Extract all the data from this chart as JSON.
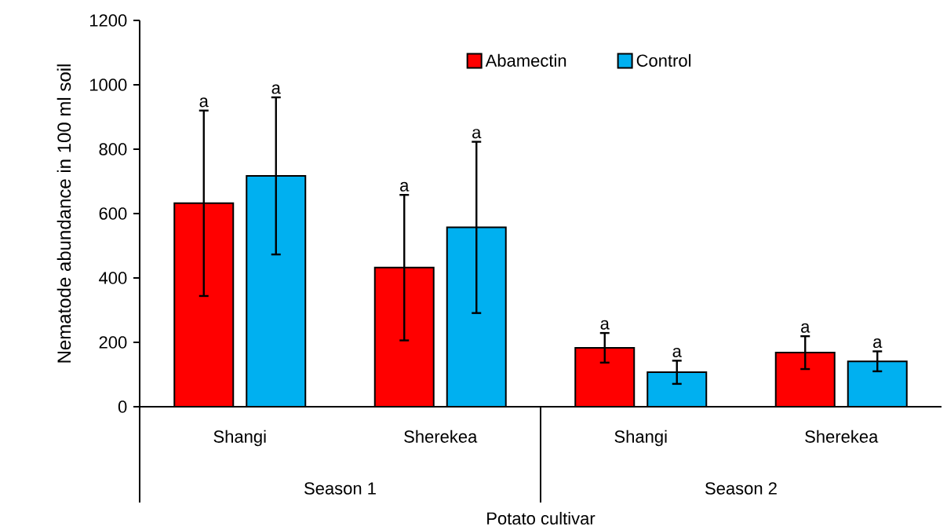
{
  "chart_data": {
    "type": "bar",
    "ylabel": "Nematode abundance in 100 ml soil",
    "xlabel": "Potato cultivar",
    "categories": [
      "Shangi",
      "Sherekea",
      "Shangi",
      "Sherekea"
    ],
    "series": [
      {
        "name": "Abamectin",
        "color": "#ff0000",
        "values": [
          632,
          432,
          183,
          168
        ],
        "errors": [
          288,
          226,
          46,
          51
        ]
      },
      {
        "name": "Control",
        "color": "#00b0f0",
        "values": [
          717,
          557,
          107,
          141
        ],
        "errors": [
          244,
          266,
          36,
          31
        ]
      }
    ],
    "annotations": [
      "Season 1",
      "Season 2",
      "a",
      "a",
      "a",
      "a",
      "a",
      "a",
      "a",
      "a"
    ],
    "ylim": [
      0,
      1200
    ],
    "yticks": [
      0,
      200,
      400,
      600,
      800,
      1000,
      1200
    ],
    "legend": "top right",
    "grid": false
  }
}
